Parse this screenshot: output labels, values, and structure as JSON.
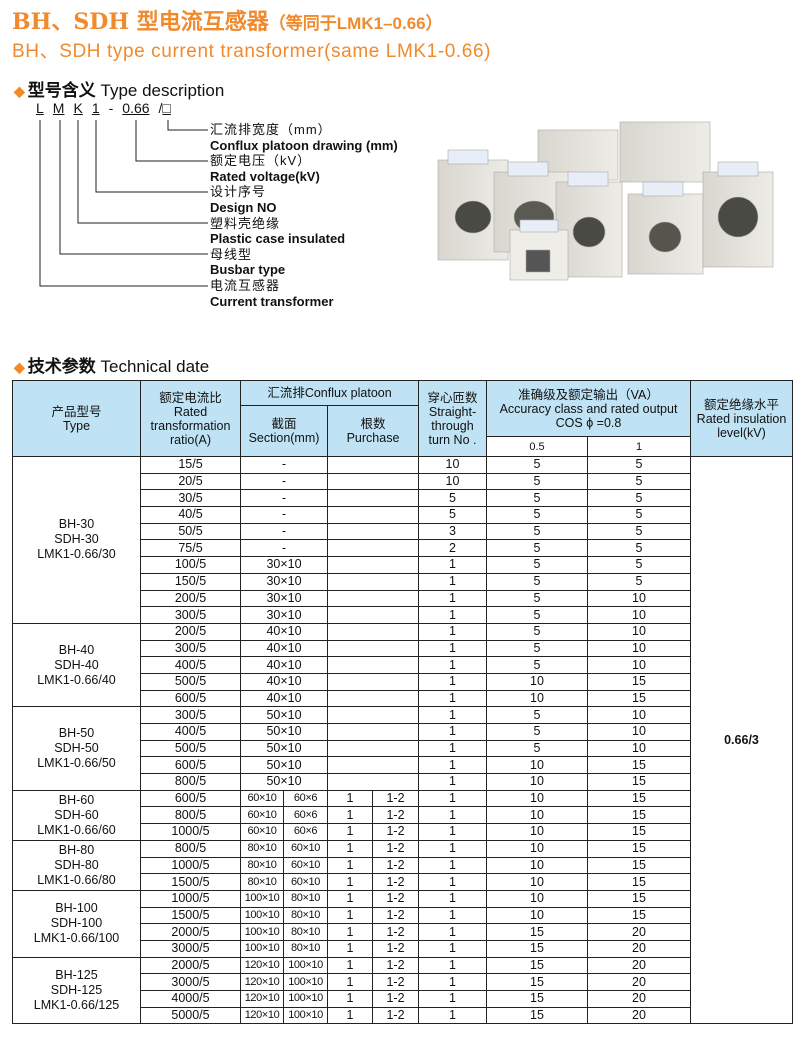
{
  "header": {
    "title_zh": "BH、SDH 型电流互感器",
    "title_note": "（等同于LMK1–0.66）",
    "title_en": "BH、SDH type current transformer(same LMK1-0.66)",
    "accent": "#f08a2c"
  },
  "type_description": {
    "heading_zh": "型号含义",
    "heading_en": "Type description",
    "code_parts": [
      "L",
      "M",
      "K",
      "1",
      "-",
      "0.66",
      "/",
      "□"
    ],
    "items": [
      {
        "zh": "汇流排宽度（mm）",
        "en": "Conflux platoon drawing (mm)"
      },
      {
        "zh": "额定电压（kV）",
        "en": "Rated voltage(kV)"
      },
      {
        "zh": "设计序号",
        "en": "Design NO"
      },
      {
        "zh": "塑料壳绝缘",
        "en": "Plastic case insulated"
      },
      {
        "zh": "母线型",
        "en": "Busbar type"
      },
      {
        "zh": "电流互感器",
        "en": "Current transformer"
      }
    ]
  },
  "technical": {
    "heading_zh": "技术参数",
    "heading_en": "Technical date",
    "header_color": "#bfe3f4",
    "headers": {
      "type_zh": "产品型号",
      "type_en": "Type",
      "ratio_zh": "额定电流比",
      "ratio_en": "Rated transformation ratio(A)",
      "conflux": "汇流排Conflux platoon",
      "section_zh": "截面",
      "section_en": "Section(mm)",
      "purchase_zh": "根数",
      "purchase_en": "Purchase",
      "turns_zh": "穿心匝数",
      "turns_en": "Straight-through turn No .",
      "acc_zh": "准确级及额定输出（VA）",
      "acc_en": "Accuracy class and rated output",
      "acc_cos": "COS ϕ =0.8",
      "acc_05": "0.5",
      "acc_1": "1",
      "ins_zh": "额定绝缘水平",
      "ins_en": "Rated insulation level(kV)"
    },
    "insulation_value": "0.66/3",
    "groups": [
      {
        "model": [
          "BH-30",
          "SDH-30",
          "LMK1-0.66/30"
        ],
        "rows": [
          [
            "15/5",
            "-",
            "",
            "10",
            "5",
            "5"
          ],
          [
            "20/5",
            "-",
            "",
            "10",
            "5",
            "5"
          ],
          [
            "30/5",
            "-",
            "",
            "5",
            "5",
            "5"
          ],
          [
            "40/5",
            "-",
            "",
            "5",
            "5",
            "5"
          ],
          [
            "50/5",
            "-",
            "",
            "3",
            "5",
            "5"
          ],
          [
            "75/5",
            "-",
            "",
            "2",
            "5",
            "5"
          ],
          [
            "100/5",
            "30×10",
            "",
            "1",
            "5",
            "5"
          ],
          [
            "150/5",
            "30×10",
            "",
            "1",
            "5",
            "5"
          ],
          [
            "200/5",
            "30×10",
            "",
            "1",
            "5",
            "10"
          ],
          [
            "300/5",
            "30×10",
            "",
            "1",
            "5",
            "10"
          ]
        ]
      },
      {
        "model": [
          "BH-40",
          "SDH-40",
          "LMK1-0.66/40"
        ],
        "rows": [
          [
            "200/5",
            "40×10",
            "",
            "1",
            "5",
            "10"
          ],
          [
            "300/5",
            "40×10",
            "",
            "1",
            "5",
            "10"
          ],
          [
            "400/5",
            "40×10",
            "",
            "1",
            "5",
            "10"
          ],
          [
            "500/5",
            "40×10",
            "",
            "1",
            "10",
            "15"
          ],
          [
            "600/5",
            "40×10",
            "",
            "1",
            "10",
            "15"
          ]
        ]
      },
      {
        "model": [
          "BH-50",
          "SDH-50",
          "LMK1-0.66/50"
        ],
        "rows": [
          [
            "300/5",
            "50×10",
            "",
            "1",
            "5",
            "10"
          ],
          [
            "400/5",
            "50×10",
            "",
            "1",
            "5",
            "10"
          ],
          [
            "500/5",
            "50×10",
            "",
            "1",
            "5",
            "10"
          ],
          [
            "600/5",
            "50×10",
            "",
            "1",
            "10",
            "15"
          ],
          [
            "800/5",
            "50×10",
            "",
            "1",
            "10",
            "15"
          ]
        ]
      },
      {
        "model": [
          "BH-60",
          "SDH-60",
          "LMK1-0.66/60"
        ],
        "rows": [
          [
            "600/5",
            [
              "60×10",
              "60×6"
            ],
            [
              "1",
              "1-2"
            ],
            "1",
            "10",
            "15"
          ],
          [
            "800/5",
            [
              "60×10",
              "60×6"
            ],
            [
              "1",
              "1-2"
            ],
            "1",
            "10",
            "15"
          ],
          [
            "1000/5",
            [
              "60×10",
              "60×6"
            ],
            [
              "1",
              "1-2"
            ],
            "1",
            "10",
            "15"
          ]
        ]
      },
      {
        "model": [
          "BH-80",
          "SDH-80",
          "LMK1-0.66/80"
        ],
        "rows": [
          [
            "800/5",
            [
              "80×10",
              "60×10"
            ],
            [
              "1",
              "1-2"
            ],
            "1",
            "10",
            "15"
          ],
          [
            "1000/5",
            [
              "80×10",
              "60×10"
            ],
            [
              "1",
              "1-2"
            ],
            "1",
            "10",
            "15"
          ],
          [
            "1500/5",
            [
              "80×10",
              "60×10"
            ],
            [
              "1",
              "1-2"
            ],
            "1",
            "10",
            "15"
          ]
        ]
      },
      {
        "model": [
          "BH-100",
          "SDH-100",
          "LMK1-0.66/100"
        ],
        "rows": [
          [
            "1000/5",
            [
              "100×10",
              "80×10"
            ],
            [
              "1",
              "1-2"
            ],
            "1",
            "10",
            "15"
          ],
          [
            "1500/5",
            [
              "100×10",
              "80×10"
            ],
            [
              "1",
              "1-2"
            ],
            "1",
            "10",
            "15"
          ],
          [
            "2000/5",
            [
              "100×10",
              "80×10"
            ],
            [
              "1",
              "1-2"
            ],
            "1",
            "15",
            "20"
          ],
          [
            "3000/5",
            [
              "100×10",
              "80×10"
            ],
            [
              "1",
              "1-2"
            ],
            "1",
            "15",
            "20"
          ]
        ]
      },
      {
        "model": [
          "BH-125",
          "SDH-125",
          "LMK1-0.66/125"
        ],
        "rows": [
          [
            "2000/5",
            [
              "120×10",
              "100×10"
            ],
            [
              "1",
              "1-2"
            ],
            "1",
            "15",
            "20"
          ],
          [
            "3000/5",
            [
              "120×10",
              "100×10"
            ],
            [
              "1",
              "1-2"
            ],
            "1",
            "15",
            "20"
          ],
          [
            "4000/5",
            [
              "120×10",
              "100×10"
            ],
            [
              "1",
              "1-2"
            ],
            "1",
            "15",
            "20"
          ],
          [
            "5000/5",
            [
              "120×10",
              "100×10"
            ],
            [
              "1",
              "1-2"
            ],
            "1",
            "15",
            "20"
          ]
        ]
      }
    ]
  }
}
